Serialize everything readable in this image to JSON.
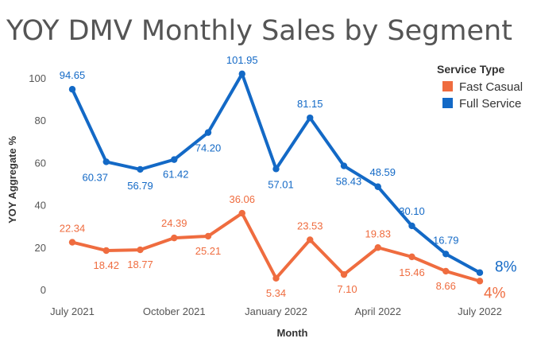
{
  "chart_data": {
    "type": "line",
    "title": "YOY DMV Monthly Sales by Segment",
    "xlabel": "Month",
    "ylabel": "YOY Aggregate %",
    "ylim": [
      0,
      100
    ],
    "yticks": [
      0,
      20,
      40,
      60,
      80,
      100
    ],
    "x": [
      "2021-07",
      "2021-08",
      "2021-09",
      "2021-10",
      "2021-11",
      "2021-12",
      "2022-01",
      "2022-02",
      "2022-03",
      "2022-04",
      "2022-05",
      "2022-06",
      "2022-07"
    ],
    "xtick_labels": [
      {
        "index": 0,
        "label": "July 2021"
      },
      {
        "index": 3,
        "label": "October 2021"
      },
      {
        "index": 6,
        "label": "January 2022"
      },
      {
        "index": 9,
        "label": "April 2022"
      },
      {
        "index": 12,
        "label": "July 2022"
      }
    ],
    "legend": {
      "title": "Service Type",
      "position": "top-right"
    },
    "series": [
      {
        "name": "Fast Casual",
        "color": "#ef6c3f",
        "values": [
          22.34,
          18.42,
          18.77,
          24.39,
          25.21,
          36.06,
          5.34,
          23.53,
          7.1,
          19.83,
          15.46,
          8.66,
          4
        ],
        "labels": [
          "22.34",
          "18.42",
          "18.77",
          "24.39",
          "25.21",
          "36.06",
          "5.34",
          "23.53",
          "7.10",
          "19.83",
          "15.46",
          "8.66",
          "4%"
        ]
      },
      {
        "name": "Full Service",
        "color": "#1369c6",
        "values": [
          94.65,
          60.37,
          56.79,
          61.42,
          74.2,
          101.95,
          57.01,
          81.15,
          58.43,
          48.59,
          30.1,
          16.79,
          8
        ],
        "labels": [
          "94.65",
          "60.37",
          "56.79",
          "61.42",
          "74.20",
          "101.95",
          "57.01",
          "81.15",
          "58.43",
          "48.59",
          "30.10",
          "16.79",
          "8%"
        ]
      }
    ]
  }
}
